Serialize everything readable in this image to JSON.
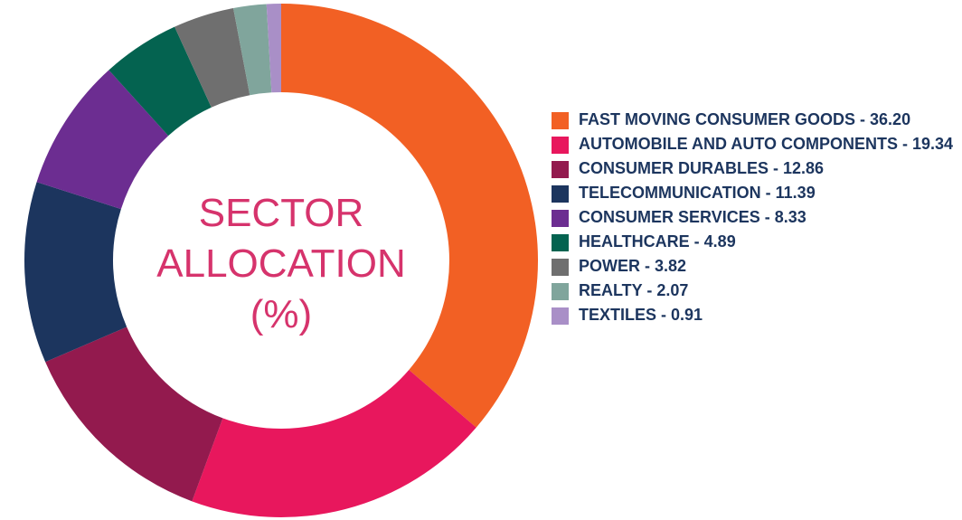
{
  "chart_data": {
    "type": "pie",
    "title": "SECTOR ALLOCATION (%)",
    "categories": [
      "FAST MOVING CONSUMER GOODS",
      "AUTOMOBILE AND AUTO COMPONENTS",
      "CONSUMER DURABLES",
      "TELECOMMUNICATION",
      "CONSUMER SERVICES",
      "HEALTHCARE",
      "POWER",
      "REALTY",
      "TEXTILES"
    ],
    "values": [
      36.2,
      19.34,
      12.86,
      11.39,
      8.33,
      4.89,
      3.82,
      2.07,
      0.91
    ],
    "value_labels": [
      "36.20",
      "19.34",
      "12.86",
      "11.39",
      "8.33",
      "4.89",
      "3.82",
      "2.07",
      "0.91"
    ],
    "colors": [
      "#f26024",
      "#e8175d",
      "#931a4e",
      "#1c355e",
      "#6c2d91",
      "#046350",
      "#6f6f6f",
      "#80a59c",
      "#a98fc7"
    ],
    "legend": "right"
  }
}
